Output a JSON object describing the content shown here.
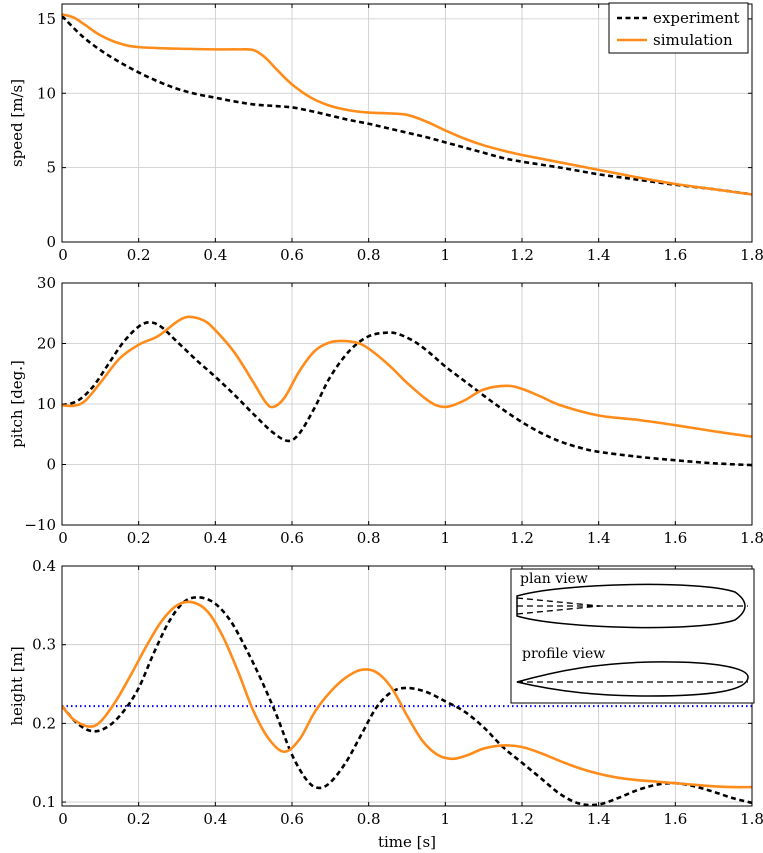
{
  "colors": {
    "experiment": "#000000",
    "simulation": "#ff8c1a",
    "reference_line": "#0000ff",
    "grid": "#c8c8c8"
  },
  "legend": {
    "experiment": "experiment",
    "simulation": "simulation",
    "placement": "top-right"
  },
  "inset": {
    "plan_label": "plan view",
    "profile_label": "profile view"
  },
  "chart_data": [
    {
      "type": "line",
      "xlabel": "",
      "ylabel": "speed [m/s]",
      "xlim": [
        0,
        1.8
      ],
      "ylim": [
        0,
        16
      ],
      "xticks": [
        0,
        0.2,
        0.4,
        0.6,
        0.8,
        1,
        1.2,
        1.4,
        1.6,
        1.8
      ],
      "xtick_labels": [
        "0",
        "0.2",
        "0.4",
        "0.6",
        "0.8",
        "1",
        "1.2",
        "1.4",
        "1.6",
        "1.8"
      ],
      "yticks": [
        0,
        5,
        10,
        15
      ],
      "ytick_labels": [
        "0",
        "5",
        "10",
        "15"
      ],
      "grid": true,
      "legend": "top-right",
      "series": [
        {
          "name": "experiment",
          "style": "dashed",
          "x": [
            0,
            0.05,
            0.1,
            0.15,
            0.2,
            0.25,
            0.3,
            0.35,
            0.4,
            0.45,
            0.5,
            0.55,
            0.6,
            0.65,
            0.7,
            0.75,
            0.8,
            0.85,
            0.9,
            0.95,
            1.0,
            1.05,
            1.1,
            1.15,
            1.2,
            1.3,
            1.4,
            1.5,
            1.6,
            1.7,
            1.8
          ],
          "y": [
            15.2,
            13.9,
            12.9,
            12.1,
            11.4,
            10.8,
            10.3,
            9.95,
            9.7,
            9.45,
            9.25,
            9.15,
            9.05,
            8.8,
            8.5,
            8.2,
            7.95,
            7.65,
            7.35,
            7.05,
            6.7,
            6.35,
            6.0,
            5.65,
            5.4,
            5.0,
            4.55,
            4.2,
            3.85,
            3.55,
            3.2
          ]
        },
        {
          "name": "simulation",
          "style": "solid",
          "x": [
            0,
            0.03,
            0.06,
            0.1,
            0.15,
            0.2,
            0.3,
            0.4,
            0.46,
            0.5,
            0.53,
            0.56,
            0.6,
            0.65,
            0.7,
            0.75,
            0.8,
            0.85,
            0.9,
            0.95,
            1.0,
            1.05,
            1.1,
            1.15,
            1.2,
            1.3,
            1.4,
            1.5,
            1.6,
            1.7,
            1.8
          ],
          "y": [
            15.3,
            15.1,
            14.6,
            13.9,
            13.35,
            13.1,
            13.0,
            12.95,
            12.95,
            12.9,
            12.4,
            11.6,
            10.6,
            9.7,
            9.15,
            8.85,
            8.7,
            8.65,
            8.55,
            8.1,
            7.5,
            6.95,
            6.5,
            6.15,
            5.85,
            5.35,
            4.85,
            4.35,
            3.9,
            3.55,
            3.2
          ]
        }
      ]
    },
    {
      "type": "line",
      "xlabel": "",
      "ylabel": "pitch [deg.]",
      "xlim": [
        0,
        1.8
      ],
      "ylim": [
        -10,
        30
      ],
      "xticks": [
        0,
        0.2,
        0.4,
        0.6,
        0.8,
        1,
        1.2,
        1.4,
        1.6,
        1.8
      ],
      "xtick_labels": [
        "0",
        "0.2",
        "0.4",
        "0.6",
        "0.8",
        "1",
        "1.2",
        "1.4",
        "1.6",
        "1.8"
      ],
      "yticks": [
        -10,
        0,
        10,
        20,
        30
      ],
      "ytick_labels": [
        "−10",
        "0",
        "10",
        "20",
        "30"
      ],
      "grid": true,
      "series": [
        {
          "name": "experiment",
          "style": "dashed",
          "x": [
            0,
            0.04,
            0.08,
            0.12,
            0.16,
            0.2,
            0.23,
            0.26,
            0.3,
            0.35,
            0.4,
            0.45,
            0.5,
            0.55,
            0.59,
            0.62,
            0.66,
            0.7,
            0.75,
            0.8,
            0.85,
            0.88,
            0.92,
            0.96,
            1.0,
            1.05,
            1.1,
            1.15,
            1.2,
            1.25,
            1.3,
            1.35,
            1.4,
            1.5,
            1.6,
            1.7,
            1.8
          ],
          "y": [
            9.8,
            10.5,
            12.8,
            16.5,
            20.2,
            22.8,
            23.5,
            22.7,
            20.3,
            17.3,
            14.5,
            11.5,
            8.3,
            5.3,
            3.9,
            5.2,
            9.5,
            14.5,
            18.8,
            21.2,
            21.8,
            21.5,
            20.3,
            18.4,
            16.2,
            13.8,
            11.4,
            9.1,
            7.0,
            5.2,
            3.8,
            2.8,
            2.1,
            1.3,
            0.7,
            0.2,
            -0.1
          ]
        },
        {
          "name": "simulation",
          "style": "solid",
          "x": [
            0,
            0.03,
            0.06,
            0.1,
            0.15,
            0.2,
            0.25,
            0.3,
            0.33,
            0.37,
            0.4,
            0.45,
            0.5,
            0.53,
            0.55,
            0.58,
            0.62,
            0.66,
            0.7,
            0.74,
            0.78,
            0.82,
            0.86,
            0.9,
            0.95,
            0.98,
            1.01,
            1.05,
            1.1,
            1.16,
            1.2,
            1.25,
            1.3,
            1.4,
            1.5,
            1.6,
            1.7,
            1.8
          ],
          "y": [
            9.8,
            9.7,
            10.5,
            13.5,
            17.5,
            19.8,
            21.2,
            23.6,
            24.4,
            23.8,
            22.2,
            18.5,
            13.5,
            10.4,
            9.5,
            11.0,
            15.5,
            18.8,
            20.2,
            20.4,
            19.9,
            18.2,
            16.0,
            13.5,
            10.8,
            9.7,
            9.6,
            10.6,
            12.4,
            13.0,
            12.5,
            11.2,
            9.8,
            8.1,
            7.4,
            6.5,
            5.5,
            4.6
          ]
        }
      ]
    },
    {
      "type": "line",
      "xlabel": "time [s]",
      "ylabel": "height [m]",
      "xlim": [
        0,
        1.8
      ],
      "ylim": [
        0.095,
        0.4
      ],
      "xticks": [
        0,
        0.2,
        0.4,
        0.6,
        0.8,
        1,
        1.2,
        1.4,
        1.6,
        1.8
      ],
      "xtick_labels": [
        "0",
        "0.2",
        "0.4",
        "0.6",
        "0.8",
        "1",
        "1.2",
        "1.4",
        "1.6",
        "1.8"
      ],
      "yticks": [
        0.1,
        0.2,
        0.3,
        0.4
      ],
      "ytick_labels": [
        "0.1",
        "0.2",
        "0.3",
        "0.4"
      ],
      "grid": true,
      "reference_line": {
        "y": 0.222,
        "style": "dotted"
      },
      "series": [
        {
          "name": "experiment",
          "style": "dashed",
          "x": [
            0,
            0.04,
            0.08,
            0.12,
            0.16,
            0.2,
            0.24,
            0.28,
            0.32,
            0.36,
            0.4,
            0.44,
            0.48,
            0.52,
            0.56,
            0.6,
            0.64,
            0.67,
            0.7,
            0.74,
            0.78,
            0.82,
            0.86,
            0.9,
            0.95,
            1.0,
            1.05,
            1.1,
            1.15,
            1.2,
            1.25,
            1.3,
            1.35,
            1.4,
            1.45,
            1.5,
            1.55,
            1.6,
            1.65,
            1.7,
            1.75,
            1.8
          ],
          "y": [
            0.222,
            0.2,
            0.19,
            0.196,
            0.215,
            0.245,
            0.29,
            0.33,
            0.355,
            0.36,
            0.352,
            0.33,
            0.295,
            0.255,
            0.21,
            0.16,
            0.127,
            0.118,
            0.125,
            0.15,
            0.185,
            0.22,
            0.24,
            0.245,
            0.24,
            0.228,
            0.215,
            0.195,
            0.17,
            0.15,
            0.13,
            0.11,
            0.098,
            0.097,
            0.105,
            0.115,
            0.122,
            0.124,
            0.12,
            0.113,
            0.105,
            0.099
          ]
        },
        {
          "name": "simulation",
          "style": "solid",
          "x": [
            0,
            0.03,
            0.07,
            0.1,
            0.14,
            0.18,
            0.22,
            0.26,
            0.3,
            0.34,
            0.38,
            0.42,
            0.46,
            0.5,
            0.54,
            0.58,
            0.62,
            0.66,
            0.7,
            0.74,
            0.78,
            0.82,
            0.86,
            0.9,
            0.94,
            0.98,
            1.02,
            1.06,
            1.1,
            1.15,
            1.2,
            1.25,
            1.3,
            1.35,
            1.4,
            1.45,
            1.5,
            1.55,
            1.6,
            1.65,
            1.7,
            1.75,
            1.8
          ],
          "y": [
            0.222,
            0.205,
            0.196,
            0.202,
            0.228,
            0.262,
            0.298,
            0.33,
            0.35,
            0.354,
            0.342,
            0.31,
            0.265,
            0.215,
            0.18,
            0.164,
            0.18,
            0.215,
            0.24,
            0.258,
            0.268,
            0.265,
            0.245,
            0.21,
            0.178,
            0.16,
            0.155,
            0.16,
            0.168,
            0.172,
            0.17,
            0.162,
            0.152,
            0.143,
            0.136,
            0.131,
            0.128,
            0.126,
            0.124,
            0.122,
            0.12,
            0.119,
            0.119
          ]
        }
      ]
    }
  ]
}
